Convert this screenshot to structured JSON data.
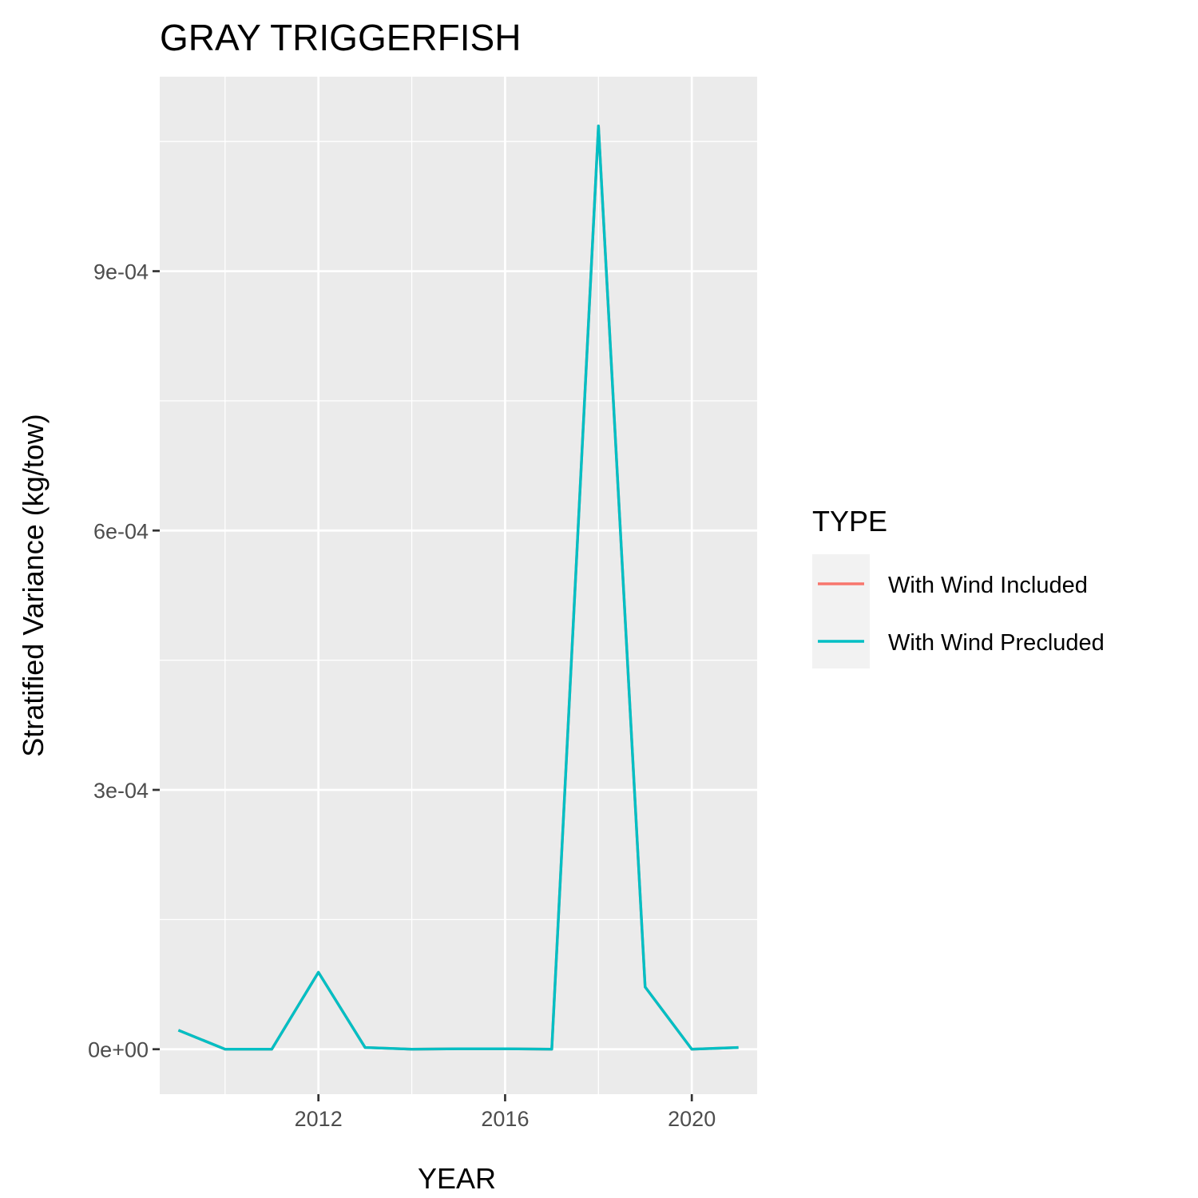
{
  "chart_data": {
    "type": "line",
    "title": "GRAY TRIGGERFISH",
    "xlabel": "YEAR",
    "ylabel": "Stratified Variance (kg/tow)",
    "xlim": [
      2008.6,
      2021.4
    ],
    "ylim": [
      -5.2e-05,
      0.001125
    ],
    "x_ticks": [
      2012,
      2016,
      2020
    ],
    "x_tick_labels": [
      "2012",
      "2016",
      "2020"
    ],
    "x_minor_ticks": [
      2010,
      2014,
      2018
    ],
    "y_ticks": [
      0,
      0.0003,
      0.0006,
      0.0009
    ],
    "y_tick_labels": [
      "0e+00",
      "3e-04",
      "6e-04",
      "9e-04"
    ],
    "y_minor_ticks": [
      0.00015,
      0.00045,
      0.00075,
      0.00105
    ],
    "grid": true,
    "legend": {
      "title": "TYPE",
      "position": "right"
    },
    "x": [
      2009,
      2010,
      2011,
      2012,
      2013,
      2014,
      2015,
      2016,
      2017,
      2018,
      2019,
      2020,
      2021
    ],
    "series": [
      {
        "name": "With Wind Included",
        "color": "#F8766D",
        "values": [
          2.2e-05,
          0.0,
          0.0,
          8.9e-05,
          2e-06,
          0.0,
          5e-07,
          5e-07,
          0.0,
          0.001068,
          7.2e-05,
          0.0,
          2e-06
        ]
      },
      {
        "name": "With Wind Precluded",
        "color": "#00BFC4",
        "values": [
          2.2e-05,
          0.0,
          0.0,
          8.9e-05,
          2e-06,
          0.0,
          5e-07,
          5e-07,
          0.0,
          0.001068,
          7.2e-05,
          0.0,
          2e-06
        ]
      }
    ]
  }
}
